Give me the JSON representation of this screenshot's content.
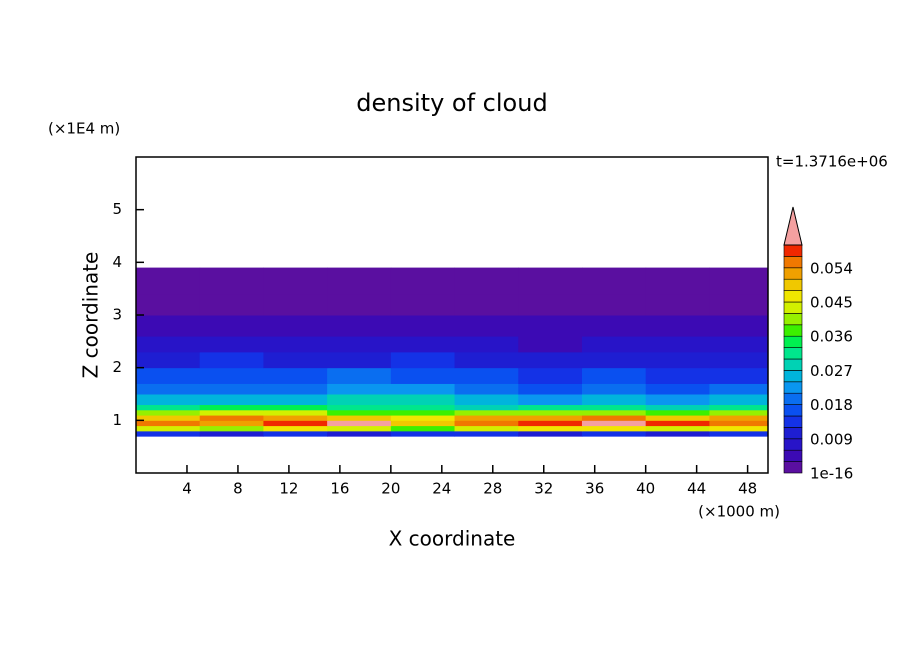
{
  "chart_data": {
    "type": "contour",
    "title": "density of cloud",
    "x_label": "X coordinate",
    "y_label": "Z coordinate",
    "x_unit": "(×1000 m)",
    "y_unit": "(×1E4 m)",
    "time_label": "t=1.3716e+06",
    "xlim": [
      0,
      49.6
    ],
    "ylim": [
      0,
      6
    ],
    "xticks": [
      4,
      8,
      12,
      16,
      20,
      24,
      28,
      32,
      36,
      40,
      44,
      48
    ],
    "yticks": [
      1,
      2,
      3,
      4,
      5
    ],
    "x_bins": [
      0,
      5,
      10,
      15,
      20,
      25,
      30,
      35,
      40,
      45,
      49.6
    ],
    "z_bins": [
      0.7,
      0.8,
      0.9,
      1.0,
      1.1,
      1.2,
      1.3,
      1.5,
      1.7,
      2.0,
      2.3,
      2.6,
      3.0,
      3.4,
      3.9
    ],
    "values": [
      [
        0.012,
        0.01,
        0.013,
        0.011,
        0.012,
        0.014,
        0.011,
        0.012,
        0.01,
        0.013
      ],
      [
        0.044,
        0.04,
        0.046,
        0.042,
        0.038,
        0.043,
        0.045,
        0.047,
        0.044,
        0.046
      ],
      [
        0.056,
        0.052,
        0.058,
        0.061,
        0.05,
        0.055,
        0.057,
        0.062,
        0.059,
        0.056
      ],
      [
        0.05,
        0.055,
        0.053,
        0.049,
        0.046,
        0.051,
        0.052,
        0.054,
        0.05,
        0.052
      ],
      [
        0.04,
        0.044,
        0.042,
        0.038,
        0.036,
        0.04,
        0.039,
        0.041,
        0.037,
        0.039
      ],
      [
        0.031,
        0.033,
        0.034,
        0.03,
        0.032,
        0.029,
        0.03,
        0.031,
        0.028,
        0.03
      ],
      [
        0.024,
        0.026,
        0.025,
        0.028,
        0.027,
        0.025,
        0.023,
        0.024,
        0.022,
        0.025
      ],
      [
        0.019,
        0.02,
        0.018,
        0.021,
        0.022,
        0.019,
        0.017,
        0.018,
        0.016,
        0.018
      ],
      [
        0.015,
        0.016,
        0.017,
        0.018,
        0.016,
        0.015,
        0.014,
        0.015,
        0.013,
        0.014
      ],
      [
        0.011,
        0.012,
        0.01,
        0.011,
        0.012,
        0.011,
        0.01,
        0.009,
        0.01,
        0.011
      ],
      [
        0.006,
        0.007,
        0.006,
        0.007,
        0.006,
        0.006,
        0.005,
        0.006,
        0.007,
        0.006
      ],
      [
        0.004,
        0.005,
        0.004,
        0.004,
        0.005,
        0.004,
        0.004,
        0.003,
        0.004,
        0.004
      ],
      [
        0.002,
        0.002,
        0.001,
        0.002,
        0.002,
        0.001,
        0.002,
        0.002,
        0.001,
        0.002
      ],
      [
        0.001,
        0.001,
        0.001,
        0.001,
        0.001,
        0.001,
        0.001,
        0.001,
        0.001,
        0.001
      ]
    ],
    "levels": [
      1e-16,
      0.003,
      0.006,
      0.009,
      0.012,
      0.015,
      0.018,
      0.021,
      0.024,
      0.027,
      0.03,
      0.033,
      0.036,
      0.039,
      0.042,
      0.045,
      0.048,
      0.051,
      0.054,
      0.057,
      0.06
    ],
    "colors": [
      "#5a0fa0",
      "#3c0ab4",
      "#2814c8",
      "#1e1ed2",
      "#1432e6",
      "#0a50f0",
      "#0a6ef0",
      "#0a96f0",
      "#00b4dc",
      "#00d2b4",
      "#00e68c",
      "#00f050",
      "#3cf000",
      "#96f000",
      "#d2f000",
      "#f0e600",
      "#f0c800",
      "#f0a000",
      "#f07800",
      "#f02800"
    ],
    "extend_color": "#f4a0a0",
    "colorbar_ticks": [
      1e-16,
      0.009,
      0.018,
      0.027,
      0.036,
      0.045,
      0.054
    ]
  }
}
